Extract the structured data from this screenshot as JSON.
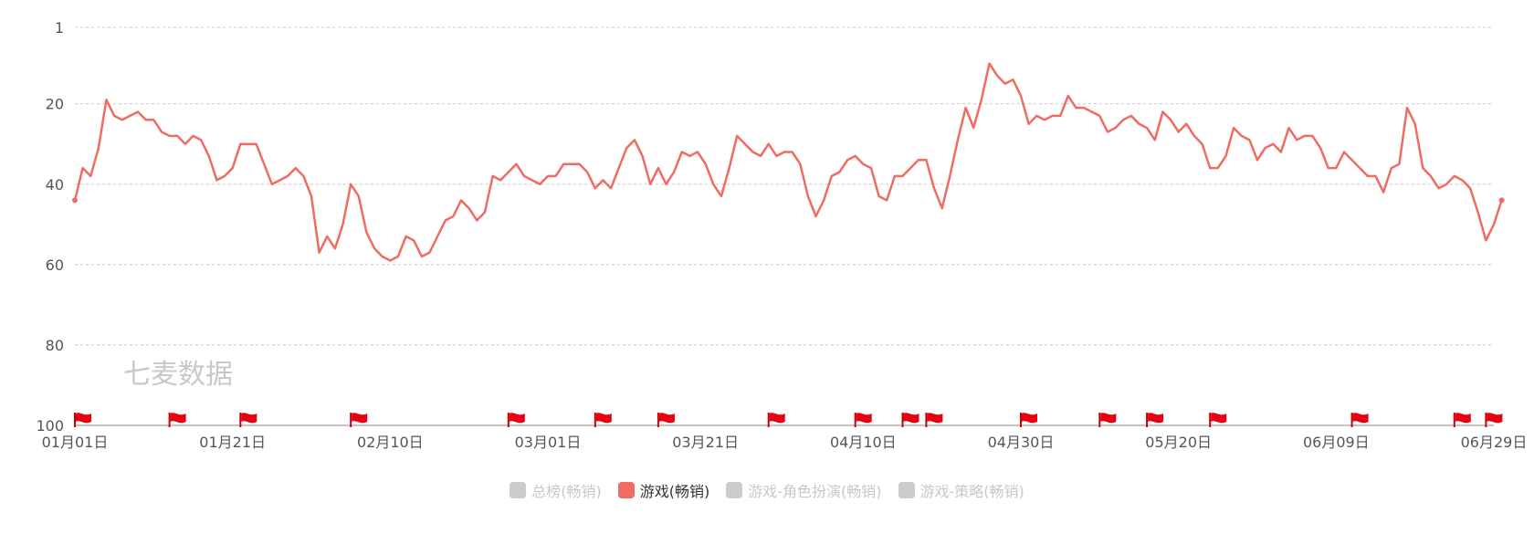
{
  "watermark": "七麦数据",
  "chart_data": {
    "type": "line",
    "y_inverted": true,
    "ylim": [
      1,
      100
    ],
    "y_ticks": [
      "1",
      "20",
      "40",
      "60",
      "80",
      "100"
    ],
    "y_tick_values": [
      1,
      20,
      40,
      60,
      80,
      100
    ],
    "x_ticks": [
      "01月01日",
      "01月21日",
      "02月10日",
      "03月01日",
      "03月21日",
      "04月10日",
      "04月30日",
      "05月20日",
      "06月09日",
      "06月29日"
    ],
    "x_tick_days": [
      0,
      20,
      40,
      60,
      80,
      100,
      120,
      140,
      160,
      180
    ],
    "grid": true,
    "legend_position": "bottom",
    "series": [
      {
        "name": "游戏(畅销)",
        "color": "#f06b61",
        "active": true,
        "values": [
          44,
          36,
          38,
          31,
          19,
          23,
          24,
          23,
          22,
          24,
          24,
          27,
          28,
          28,
          30,
          28,
          29,
          33,
          39,
          38,
          36,
          30,
          30,
          30,
          35,
          40,
          39,
          38,
          36,
          38,
          43,
          57,
          53,
          56,
          50,
          40,
          43,
          52,
          56,
          58,
          59,
          58,
          53,
          54,
          58,
          57,
          53,
          49,
          48,
          44,
          46,
          49,
          47,
          38,
          39,
          37,
          35,
          38,
          39,
          40,
          38,
          38,
          35,
          35,
          35,
          37,
          41,
          39,
          41,
          36,
          31,
          29,
          33,
          40,
          36,
          40,
          37,
          32,
          33,
          32,
          35,
          40,
          43,
          36,
          28,
          30,
          32,
          33,
          30,
          33,
          32,
          32,
          35,
          43,
          48,
          44,
          38,
          37,
          34,
          33,
          35,
          36,
          43,
          44,
          38,
          38,
          36,
          34,
          34,
          41,
          46,
          38,
          29,
          21,
          26,
          19,
          10,
          13,
          15,
          14,
          18,
          25,
          23,
          24,
          23,
          23,
          18,
          21,
          21,
          22,
          23,
          27,
          26,
          24,
          23,
          25,
          26,
          29,
          22,
          24,
          27,
          25,
          28,
          30,
          36,
          36,
          33,
          26,
          28,
          29,
          34,
          31,
          30,
          32,
          26,
          29,
          28,
          28,
          31,
          36,
          36,
          32,
          34,
          36,
          38,
          38,
          42,
          36,
          35,
          21,
          25,
          36,
          38,
          41,
          40,
          38,
          39,
          41,
          47,
          54,
          50,
          44
        ]
      }
    ],
    "event_flag_days": [
      0,
      12,
      21,
      35,
      55,
      66,
      74,
      88,
      99,
      105,
      108,
      120,
      130,
      136,
      144,
      162,
      175,
      179
    ]
  },
  "legend": [
    {
      "label": "总榜(畅销)",
      "color": "#cccccc",
      "active": false
    },
    {
      "label": "游戏(畅销)",
      "color": "#f06b61",
      "active": true
    },
    {
      "label": "游戏-角色扮演(畅销)",
      "color": "#cccccc",
      "active": false
    },
    {
      "label": "游戏-策略(畅销)",
      "color": "#cccccc",
      "active": false
    }
  ]
}
